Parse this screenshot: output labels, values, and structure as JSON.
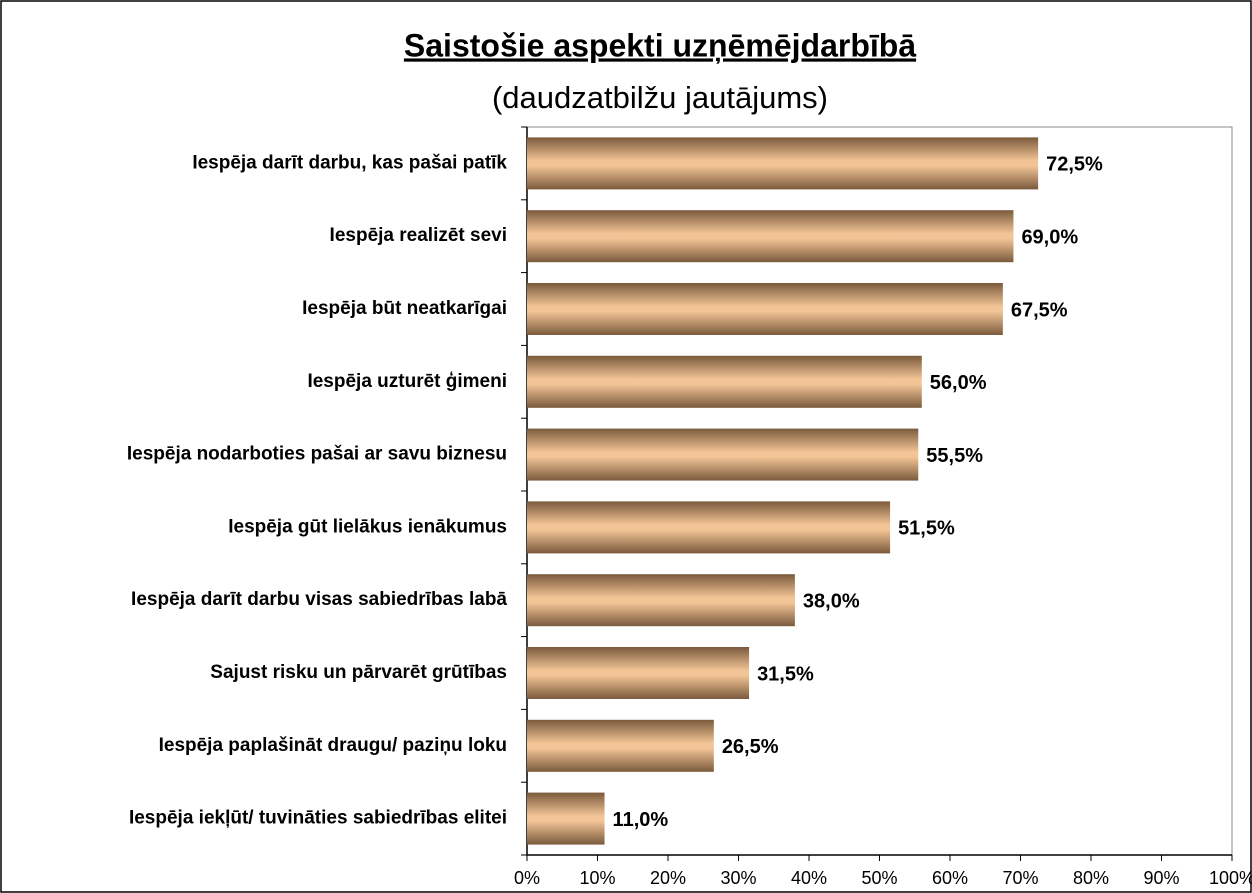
{
  "chart_data": {
    "type": "bar",
    "orientation": "horizontal",
    "title": "Saistošie aspekti uzņēmējdarbībā",
    "subtitle": "(daudzatbilžu jautājums)",
    "categories": [
      "Iespēja  darīt darbu, kas pašai patīk",
      "Iespēja realizēt sevi",
      "Iespēja būt neatkarīgai",
      "Iespēja uzturēt ģimeni",
      "Iespēja nodarboties pašai ar savu biznesu",
      "Iespēja gūt lielākus ienākumus",
      "Iespēja darīt darbu visas sabiedrības labā",
      "Sajust risku un pārvarēt grūtības",
      "Iespēja paplašināt draugu/ paziņu loku",
      "Iespēja iekļūt/ tuvināties sabiedrības elitei"
    ],
    "values": [
      72.5,
      69.0,
      67.5,
      56.0,
      55.5,
      51.5,
      38.0,
      31.5,
      26.5,
      11.0
    ],
    "value_labels": [
      "72,5%",
      "69,0%",
      "67,5%",
      "56,0%",
      "55,5%",
      "51,5%",
      "38,0%",
      "31,5%",
      "26,5%",
      "11,0%"
    ],
    "color": "#f2c496",
    "xlim": [
      0,
      100
    ],
    "xticks": [
      {
        "value": 0,
        "label": "0%"
      },
      {
        "value": 10,
        "label": "10%"
      },
      {
        "value": 20,
        "label": "20%"
      },
      {
        "value": 30,
        "label": "30%"
      },
      {
        "value": 40,
        "label": "40%"
      },
      {
        "value": 50,
        "label": "50%"
      },
      {
        "value": 60,
        "label": "60%"
      },
      {
        "value": 70,
        "label": "70%"
      },
      {
        "value": 80,
        "label": "80%"
      },
      {
        "value": 90,
        "label": "90%"
      },
      {
        "value": 100,
        "label": "100%"
      }
    ],
    "grid": false
  }
}
